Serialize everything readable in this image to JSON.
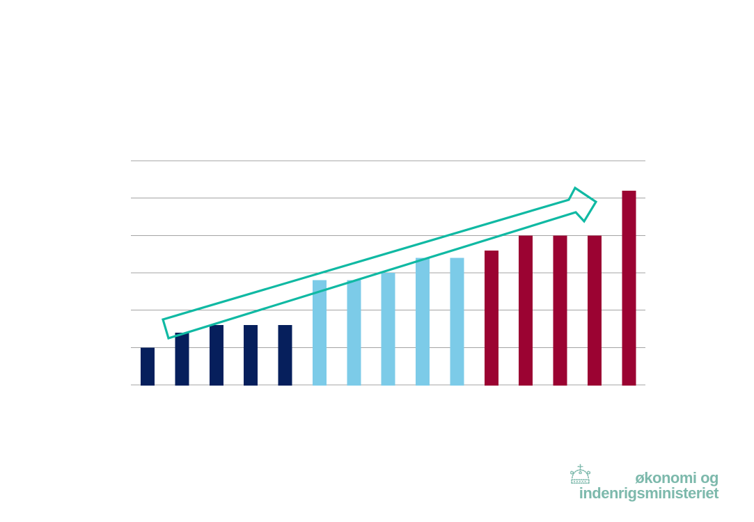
{
  "page": {
    "background_color": "#ffffff",
    "description": "presentation slide containing a single bar chart with trend arrow and ministry logo"
  },
  "chart_data": {
    "type": "bar",
    "title": "",
    "xlabel": "",
    "ylabel": "",
    "bar_count": 15,
    "categories": [],
    "values": [
      1.0,
      1.4,
      1.6,
      1.6,
      1.6,
      2.8,
      2.8,
      3.0,
      3.4,
      3.4,
      3.6,
      4.0,
      4.0,
      4.0,
      5.2
    ],
    "values_note": "values estimated in gridline intervals; no numeric axis labels are shown in the image",
    "groups": [
      {
        "name": "group-1-dark-navy",
        "color": "#061F5C",
        "bar_indices": [
          0,
          1,
          2,
          3,
          4
        ]
      },
      {
        "name": "group-2-light-blue",
        "color": "#7CCBE8",
        "bar_indices": [
          5,
          6,
          7,
          8,
          9
        ]
      },
      {
        "name": "group-3-dark-red",
        "color": "#9B0332",
        "bar_indices": [
          10,
          11,
          12,
          13,
          14
        ]
      }
    ],
    "ylim": [
      0,
      6
    ],
    "gridline_count": 7,
    "gridline_color": "#A3A3A3",
    "grid": "horizontal gridlines on, no vertical axis line",
    "legend": "none",
    "axis_tick_labels": "none",
    "annotation": {
      "type": "block-arrow-outline",
      "description": "hollow upward trend arrow pointing up-right across the bars",
      "color": "#10B9A3"
    }
  },
  "logo": {
    "line1": "økonomi og",
    "line2": "indenrigsministeriet",
    "color": "#7DB9AC",
    "icon": "crown-icon"
  }
}
